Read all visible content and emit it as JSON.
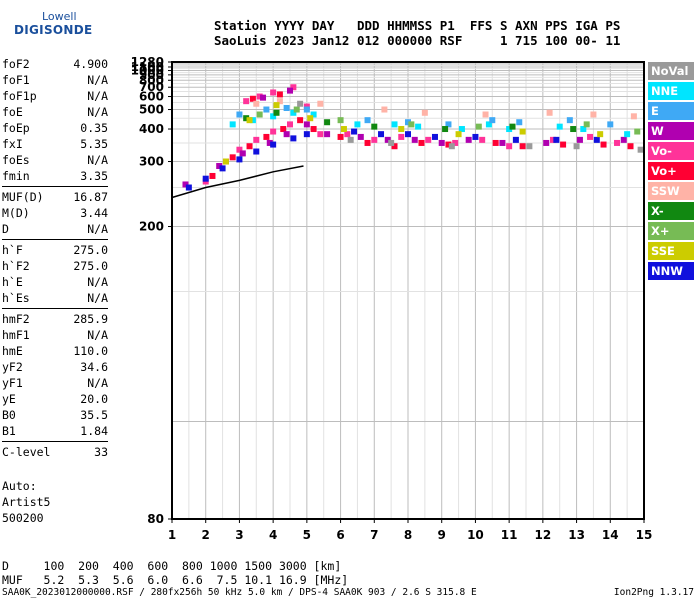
{
  "logo": {
    "brand": "Lowell",
    "product": "DIGISONDE"
  },
  "header": {
    "line1": "Station YYYY DAY   DDD HHMMSS P1  FFS S AXN PPS IGA PS",
    "line2": "SaoLuis 2023 Jan12 012 000000 RSF     1 715 100 00- 11"
  },
  "parameters": [
    [
      {
        "name": "foF2",
        "value": "4.900"
      },
      {
        "name": "foF1",
        "value": "N/A"
      },
      {
        "name": "foF1p",
        "value": "N/A"
      },
      {
        "name": "foE",
        "value": "N/A"
      },
      {
        "name": "foEp",
        "value": "0.35"
      },
      {
        "name": "fxI",
        "value": "5.35"
      },
      {
        "name": "foEs",
        "value": "N/A"
      },
      {
        "name": "fmin",
        "value": "3.35"
      }
    ],
    [
      {
        "name": "MUF(D)",
        "value": "16.87"
      },
      {
        "name": "M(D)",
        "value": "3.44"
      },
      {
        "name": "D",
        "value": "N/A"
      }
    ],
    [
      {
        "name": "h`F",
        "value": "275.0"
      },
      {
        "name": "h`F2",
        "value": "275.0"
      },
      {
        "name": "h`E",
        "value": "N/A"
      },
      {
        "name": "h`Es",
        "value": "N/A"
      }
    ],
    [
      {
        "name": "hmF2",
        "value": "285.9"
      },
      {
        "name": "hmF1",
        "value": "N/A"
      },
      {
        "name": "hmE",
        "value": "110.0"
      },
      {
        "name": "yF2",
        "value": "34.6"
      },
      {
        "name": "yF1",
        "value": "N/A"
      },
      {
        "name": "yE",
        "value": "20.0"
      },
      {
        "name": "B0",
        "value": "35.5"
      },
      {
        "name": "B1",
        "value": "1.84"
      }
    ],
    [
      {
        "name": "C-level",
        "value": "33"
      }
    ]
  ],
  "auto": [
    "Auto:",
    "Artist5",
    "500200"
  ],
  "legend": [
    {
      "label": "NoVal",
      "color": "#9a9a9a"
    },
    {
      "label": "NNE",
      "color": "#00e5ff"
    },
    {
      "label": "E",
      "color": "#3fa9f5"
    },
    {
      "label": "W",
      "color": "#b000b0"
    },
    {
      "label": "Vo-",
      "color": "#ff3399"
    },
    {
      "label": "Vo+",
      "color": "#ff0033"
    },
    {
      "label": "SSW",
      "color": "#ffb3a7"
    },
    {
      "label": "X-",
      "color": "#118811"
    },
    {
      "label": "X+",
      "color": "#77bb55"
    },
    {
      "label": "SSE",
      "color": "#cccc00"
    },
    {
      "label": "NNW",
      "color": "#1010dd"
    }
  ],
  "muf_table": {
    "d_line": "D     100  200  400  600  800 1000 1500 3000 [km]",
    "muf_line": "MUF   5.2  5.3  5.6  6.0  6.6  7.5 10.1 16.9 [MHz]"
  },
  "footer": {
    "left": "SAA0K_2023012000000.RSF / 280fx256h 50 kHz 5.0 km / DPS-4 SAA0K 903 / 2.6 S 315.8 E",
    "right": "Ion2Png 1.3.17"
  },
  "chart_data": {
    "type": "scatter",
    "xlabel": "",
    "ylabel": "",
    "xlim": [
      1,
      15
    ],
    "ylim": [
      80,
      1280
    ],
    "x_ticks": [
      1,
      2,
      3,
      4,
      5,
      6,
      7,
      8,
      9,
      10,
      11,
      12,
      13,
      14,
      15
    ],
    "y_ticks": [
      80,
      200,
      300,
      400,
      500,
      600,
      700,
      800,
      900,
      1000,
      1100,
      1280
    ],
    "y_scale": "reciprocal",
    "grid": true,
    "series": [
      {
        "name": "Vo-",
        "color": "#ff3399",
        "points": [
          [
            2.0,
            260
          ],
          [
            2.6,
            300
          ],
          [
            3.0,
            330
          ],
          [
            3.5,
            360
          ],
          [
            4.0,
            390
          ],
          [
            4.5,
            420
          ],
          [
            5.0,
            520
          ],
          [
            3.2,
            560
          ],
          [
            3.6,
            600
          ],
          [
            4.0,
            640
          ],
          [
            4.6,
            700
          ],
          [
            5.4,
            380
          ],
          [
            6.2,
            380
          ],
          [
            7.0,
            360
          ],
          [
            7.8,
            370
          ],
          [
            8.6,
            360
          ],
          [
            9.4,
            350
          ],
          [
            10.2,
            360
          ],
          [
            11.0,
            340
          ],
          [
            12.3,
            360
          ],
          [
            13.4,
            370
          ],
          [
            14.2,
            350
          ]
        ]
      },
      {
        "name": "Vo+",
        "color": "#ff0033",
        "points": [
          [
            2.2,
            270
          ],
          [
            2.8,
            310
          ],
          [
            3.3,
            340
          ],
          [
            3.8,
            370
          ],
          [
            4.3,
            400
          ],
          [
            4.8,
            440
          ],
          [
            3.4,
            580
          ],
          [
            4.2,
            620
          ],
          [
            5.2,
            400
          ],
          [
            6.0,
            370
          ],
          [
            6.8,
            350
          ],
          [
            7.6,
            340
          ],
          [
            8.4,
            350
          ],
          [
            9.2,
            345
          ],
          [
            10.6,
            350
          ],
          [
            11.4,
            340
          ],
          [
            12.6,
            345
          ],
          [
            13.8,
            345
          ],
          [
            14.6,
            340
          ]
        ]
      },
      {
        "name": "W",
        "color": "#b000b0",
        "points": [
          [
            1.4,
            255
          ],
          [
            2.4,
            290
          ],
          [
            3.1,
            320
          ],
          [
            3.9,
            350
          ],
          [
            4.4,
            380
          ],
          [
            5.0,
            420
          ],
          [
            3.7,
            590
          ],
          [
            4.5,
            660
          ],
          [
            5.6,
            380
          ],
          [
            6.6,
            370
          ],
          [
            7.4,
            360
          ],
          [
            8.2,
            360
          ],
          [
            9.0,
            350
          ],
          [
            9.8,
            360
          ],
          [
            10.8,
            350
          ],
          [
            12.1,
            350
          ],
          [
            13.1,
            360
          ],
          [
            14.4,
            360
          ]
        ]
      },
      {
        "name": "NNW",
        "color": "#1010dd",
        "points": [
          [
            1.5,
            250
          ],
          [
            2.0,
            265
          ],
          [
            2.5,
            285
          ],
          [
            3.0,
            305
          ],
          [
            3.5,
            325
          ],
          [
            4.0,
            345
          ],
          [
            4.6,
            365
          ],
          [
            5.0,
            380
          ],
          [
            6.4,
            390
          ],
          [
            7.2,
            380
          ],
          [
            8.0,
            380
          ],
          [
            8.8,
            370
          ],
          [
            10.0,
            370
          ],
          [
            11.2,
            360
          ],
          [
            12.4,
            360
          ],
          [
            13.6,
            360
          ]
        ]
      },
      {
        "name": "NNE",
        "color": "#00e5ff",
        "points": [
          [
            2.8,
            420
          ],
          [
            3.4,
            440
          ],
          [
            4.0,
            460
          ],
          [
            4.6,
            480
          ],
          [
            5.2,
            470
          ],
          [
            6.5,
            420
          ],
          [
            7.6,
            420
          ],
          [
            8.3,
            410
          ],
          [
            9.6,
            400
          ],
          [
            10.4,
            420
          ],
          [
            11.0,
            400
          ],
          [
            12.5,
            410
          ],
          [
            13.2,
            400
          ],
          [
            14.5,
            380
          ]
        ]
      },
      {
        "name": "E",
        "color": "#3fa9f5",
        "points": [
          [
            3.0,
            470
          ],
          [
            3.8,
            500
          ],
          [
            4.4,
            510
          ],
          [
            5.0,
            500
          ],
          [
            6.8,
            440
          ],
          [
            8.0,
            430
          ],
          [
            9.2,
            420
          ],
          [
            10.5,
            440
          ],
          [
            11.3,
            430
          ],
          [
            12.8,
            440
          ],
          [
            14.0,
            420
          ]
        ]
      },
      {
        "name": "SSW",
        "color": "#ffb3a7",
        "points": [
          [
            3.5,
            540
          ],
          [
            4.2,
            560
          ],
          [
            5.4,
            540
          ],
          [
            7.3,
            500
          ],
          [
            8.5,
            480
          ],
          [
            10.3,
            470
          ],
          [
            12.2,
            480
          ],
          [
            13.5,
            470
          ],
          [
            14.7,
            460
          ]
        ]
      },
      {
        "name": "X-",
        "color": "#118811",
        "points": [
          [
            3.2,
            450
          ],
          [
            4.1,
            480
          ],
          [
            5.6,
            430
          ],
          [
            7.0,
            410
          ],
          [
            9.1,
            400
          ],
          [
            11.1,
            410
          ],
          [
            12.9,
            400
          ]
        ]
      },
      {
        "name": "X+",
        "color": "#77bb55",
        "points": [
          [
            3.6,
            470
          ],
          [
            4.7,
            500
          ],
          [
            6.0,
            440
          ],
          [
            8.1,
            420
          ],
          [
            10.1,
            410
          ],
          [
            13.3,
            420
          ],
          [
            14.8,
            390
          ]
        ]
      },
      {
        "name": "SSE",
        "color": "#cccc00",
        "points": [
          [
            2.6,
            300
          ],
          [
            3.3,
            440
          ],
          [
            4.1,
            530
          ],
          [
            5.1,
            450
          ],
          [
            6.1,
            400
          ],
          [
            7.8,
            400
          ],
          [
            9.5,
            380
          ],
          [
            11.4,
            390
          ],
          [
            13.7,
            380
          ]
        ]
      },
      {
        "name": "NoVal",
        "color": "#9a9a9a",
        "points": [
          [
            4.8,
            540
          ],
          [
            6.3,
            360
          ],
          [
            7.5,
            350
          ],
          [
            9.3,
            340
          ],
          [
            11.6,
            340
          ],
          [
            13.0,
            340
          ],
          [
            14.9,
            330
          ]
        ]
      }
    ],
    "trace": {
      "name": "F-trace",
      "color": "#000000",
      "points": [
        [
          1.0,
          235
        ],
        [
          2.0,
          250
        ],
        [
          3.0,
          262
        ],
        [
          4.0,
          278
        ],
        [
          4.9,
          290
        ]
      ]
    }
  }
}
